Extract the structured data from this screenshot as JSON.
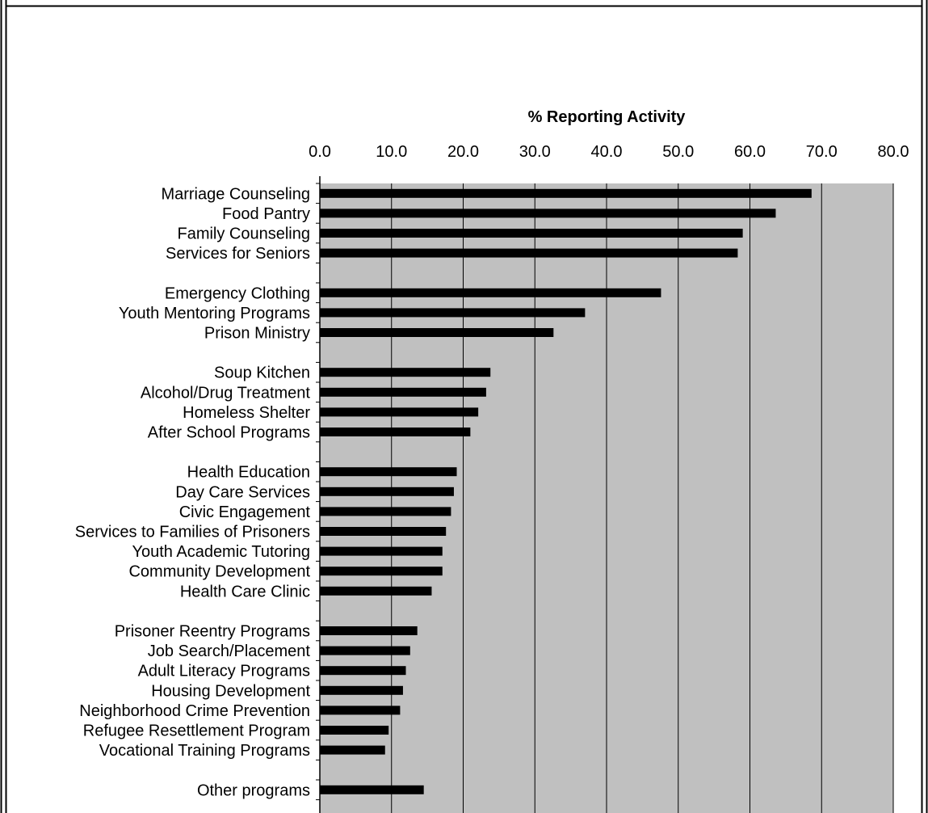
{
  "chart_data": {
    "type": "bar",
    "orientation": "horizontal",
    "title": "",
    "xlabel": "% Reporting Activity",
    "ylabel": "",
    "xlim": [
      0,
      80
    ],
    "xticks": [
      "0.0",
      "10.0",
      "20.0",
      "30.0",
      "40.0",
      "50.0",
      "60.0",
      "70.0",
      "80.0"
    ],
    "x_axis_position": "top",
    "grid": "vertical gridlines",
    "plot_background": "#c0c0c0",
    "bar_color": "#000000",
    "categories": [
      "Marriage Counseling",
      "Food Pantry",
      "Family Counseling",
      "Services for Seniors",
      "",
      "Emergency Clothing",
      "Youth Mentoring Programs",
      "Prison Ministry ",
      "",
      "Soup Kitchen ",
      "Alcohol/Drug Treatment",
      "Homeless Shelter",
      "After School Programs ",
      "",
      "Health Education ",
      "Day Care Services",
      "Civic Engagement",
      "Services to Families of Prisoners",
      "Youth Academic Tutoring ",
      "Community Development",
      "Health Care Clinic",
      "",
      "Prisoner Reentry Programs ",
      "Job Search/Placement ",
      "Adult Literacy Programs ",
      "Housing Development",
      "Neighborhood Crime Prevention",
      "Refugee Resettlement Program",
      "Vocational Training Programs ",
      "",
      "Other programs "
    ],
    "values": [
      68.6,
      63.6,
      59.0,
      58.3,
      null,
      47.6,
      37.0,
      32.6,
      null,
      23.8,
      23.2,
      22.1,
      21.0,
      null,
      19.1,
      18.7,
      18.3,
      17.6,
      17.1,
      17.1,
      15.6,
      null,
      13.6,
      12.6,
      12.0,
      11.6,
      11.2,
      9.6,
      9.1,
      null,
      14.5
    ]
  }
}
